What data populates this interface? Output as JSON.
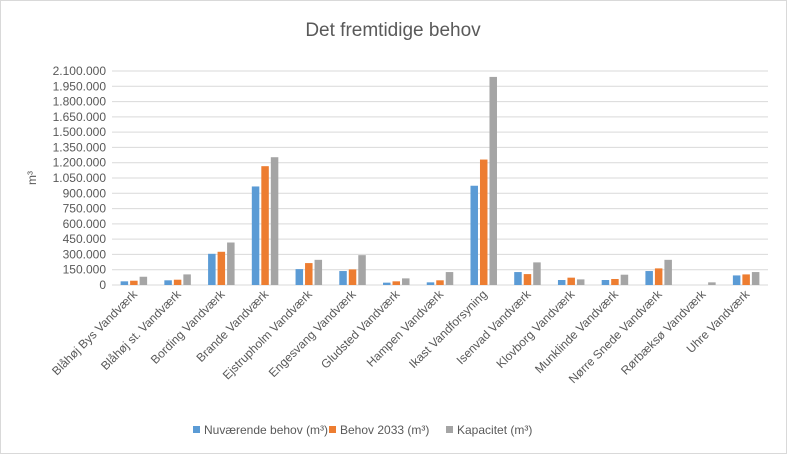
{
  "chart_data": {
    "type": "bar",
    "title": "Det fremtidige behov",
    "xlabel": "",
    "ylabel": "m³",
    "ylim": [
      0,
      2100000
    ],
    "ytick_step": 150000,
    "yticks": [
      "0",
      "150.000",
      "300.000",
      "450.000",
      "600.000",
      "750.000",
      "900.000",
      "1.050.000",
      "1.200.000",
      "1.350.000",
      "1.500.000",
      "1.650.000",
      "1.800.000",
      "1.950.000",
      "2.100.000"
    ],
    "grid": true,
    "legend_position": "bottom",
    "categories": [
      "Blåhøj Bys Vandværk",
      "Blåhøj st. Vandværk",
      "Bording Vandværk",
      "Brande Vandværk",
      "Ejstrupholm Vandværk",
      "Engesvang Vandværk",
      "Gludsted Vandværk",
      "Hampen Vandværk",
      "Ikast Vandforsyning",
      "Isenvad Vandværk",
      "Klovborg Vandværk",
      "Munklinde Vandværk",
      "Nørre Snede Vandværk",
      "Rørbæksø Vandværk",
      "Uhre Vandværk"
    ],
    "series": [
      {
        "name": "Nuværende behov (m³)",
        "color": "#5b9bd5",
        "values": [
          36000,
          46000,
          306000,
          967000,
          156000,
          137000,
          23000,
          26000,
          974000,
          127000,
          49000,
          49000,
          137000,
          0,
          94000
        ]
      },
      {
        "name": "Behov 2033 (m³)",
        "color": "#ed7d31",
        "values": [
          42000,
          52000,
          326000,
          1166000,
          215000,
          153000,
          36000,
          46000,
          1231000,
          107000,
          72000,
          59000,
          163000,
          0,
          104000
        ]
      },
      {
        "name": "Kapacitet (m³)",
        "color": "#a5a5a5",
        "values": [
          81000,
          104000,
          417000,
          1254000,
          247000,
          293000,
          65000,
          127000,
          2042000,
          222000,
          55000,
          101000,
          247000,
          26000,
          127000
        ]
      }
    ]
  }
}
